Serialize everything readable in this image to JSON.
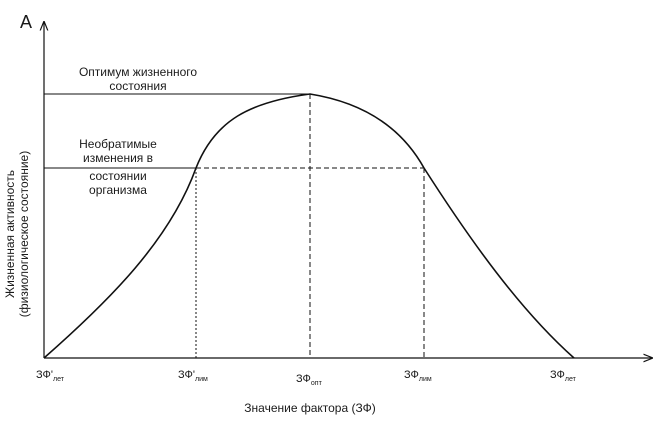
{
  "diagram": {
    "axis_y_letter": "А",
    "y_axis_title_line1": "Жизненная активность",
    "y_axis_title_line2": "(физиологическое состояние)",
    "x_axis_title": "Значение фактора (ЗФ)",
    "optimum_label_line1": "Оптимум жизненного",
    "optimum_label_line2": "состояния",
    "irreversible_label_line1": "Необратимые",
    "irreversible_label_line2": "изменения в",
    "irreversible_label_line3": "состоянии",
    "irreversible_label_line4": "организма",
    "x_ticks": [
      {
        "main": "ЗФ'",
        "sub": "лет"
      },
      {
        "main": "ЗФ'",
        "sub": "лим"
      },
      {
        "main": "ЗФ",
        "sub": "опт"
      },
      {
        "main": "ЗФ",
        "sub": "лим"
      },
      {
        "main": "ЗФ",
        "sub": "лет"
      }
    ]
  }
}
